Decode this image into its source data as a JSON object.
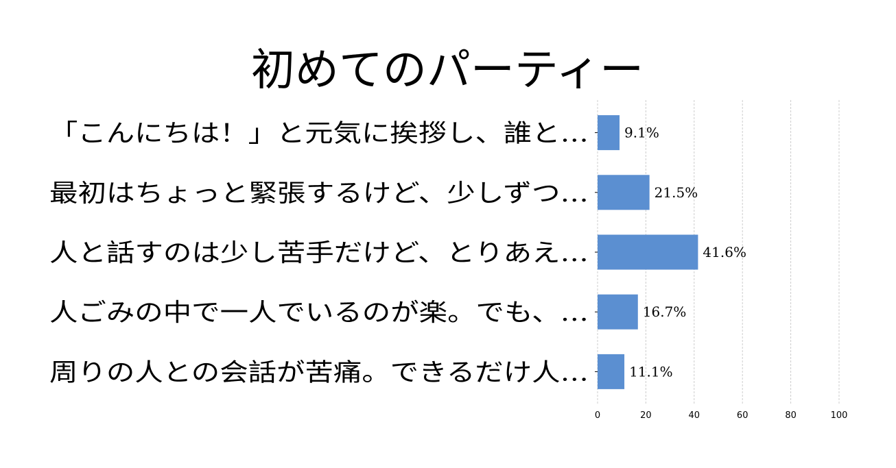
{
  "chart_data": {
    "type": "bar",
    "orientation": "horizontal",
    "title": "初めてのパーティー",
    "categories": [
      "「こんにちは！」と元気に挨拶し、誰と…",
      "最初はちょっと緊張するけど、少しずつ…",
      "人と話すのは少し苦手だけど、とりあえ…",
      "人ごみの中で一人でいるのが楽。でも、…",
      "周りの人との会話が苦痛。できるだけ人…"
    ],
    "values": [
      9.1,
      21.5,
      41.6,
      16.7,
      11.1
    ],
    "data_labels": [
      "9.1%",
      "21.5%",
      "41.6%",
      "16.7%",
      "11.1%"
    ],
    "xlim": [
      0,
      100
    ],
    "xticks": [
      0,
      20,
      40,
      60,
      80,
      100
    ],
    "xtick_labels": [
      "0",
      "20",
      "40",
      "60",
      "80",
      "100"
    ],
    "grid": "vertical dashed",
    "bar_color": "#5b8fd1"
  }
}
